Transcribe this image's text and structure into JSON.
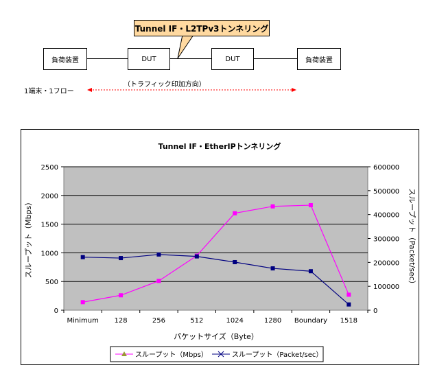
{
  "diagram": {
    "device_left": "負荷装置",
    "dut_left": "DUT",
    "dut_right": "DUT",
    "device_right": "負荷装置",
    "callout": "Tunnel IF・L2TPv3トンネリング",
    "flow_label": "1端末・1フロー",
    "direction_label": "（トラフィック印加方向）",
    "arrow_color": "#ff0000"
  },
  "chart_data": {
    "type": "line",
    "title": "Tunnel IF・EtherIPトンネリング",
    "categories": [
      "Minimum",
      "128",
      "256",
      "512",
      "1024",
      "1280",
      "Boundary",
      "1518"
    ],
    "xlabel": "パケットサイズ（Byte）",
    "ylabel": "スループット（Mbps）",
    "y2label": "スループット（Packet/sec）",
    "ylim": [
      0,
      2500
    ],
    "y2lim": [
      0,
      600000
    ],
    "yticks": [
      "0",
      "500",
      "1000",
      "1500",
      "2000",
      "2500"
    ],
    "y2ticks": [
      "0",
      "100000",
      "200000",
      "300000",
      "400000",
      "500000",
      "600000"
    ],
    "grid": true,
    "plot_bg": "#c0c0c0",
    "legend_position": "bottom",
    "series": [
      {
        "name": "スループット（Mbps）",
        "axis": "left",
        "color": "#ff00ff",
        "marker": "square",
        "legend_marker": "triangle",
        "legend_marker_color": "#999933",
        "values": [
          140,
          260,
          510,
          950,
          1690,
          1810,
          1830,
          270
        ]
      },
      {
        "name": "スループット（Packet/sec）",
        "axis": "right",
        "color": "#000080",
        "marker": "square",
        "legend_marker": "x",
        "legend_marker_color": "#000080",
        "values": [
          222000,
          218000,
          233000,
          225000,
          201000,
          175000,
          163000,
          24000
        ]
      }
    ]
  }
}
